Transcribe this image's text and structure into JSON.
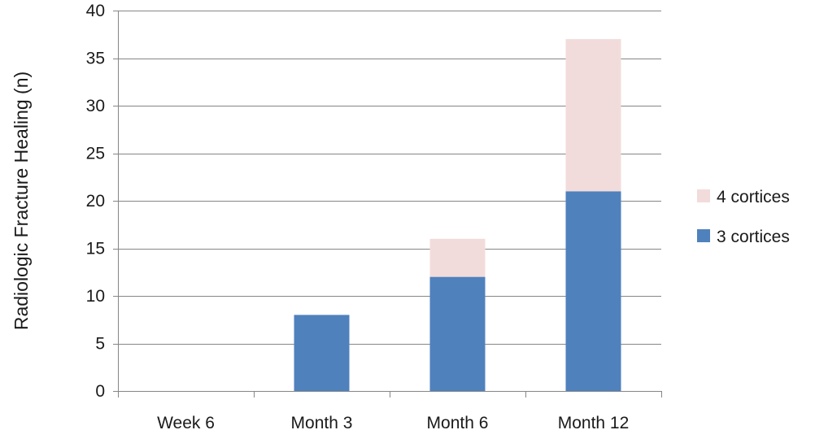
{
  "chart_data": {
    "type": "bar",
    "stacked": true,
    "title": "",
    "xlabel": "",
    "ylabel": "Radiologic Fracture Healing (n)",
    "categories": [
      "Week 6",
      "Month 3",
      "Month 6",
      "Month 12"
    ],
    "series": [
      {
        "name": "3 cortices",
        "values": [
          0,
          8,
          12,
          21
        ],
        "color": "#4f81bd"
      },
      {
        "name": "4 cortices",
        "values": [
          0,
          0,
          4,
          16
        ],
        "color": "#f2dcdb"
      }
    ],
    "ylim": [
      0,
      40
    ],
    "yticks": [
      0,
      5,
      10,
      15,
      20,
      25,
      30,
      35,
      40
    ],
    "grid": true,
    "legend_position": "right",
    "legend_order": [
      "4 cortices",
      "3 cortices"
    ]
  }
}
